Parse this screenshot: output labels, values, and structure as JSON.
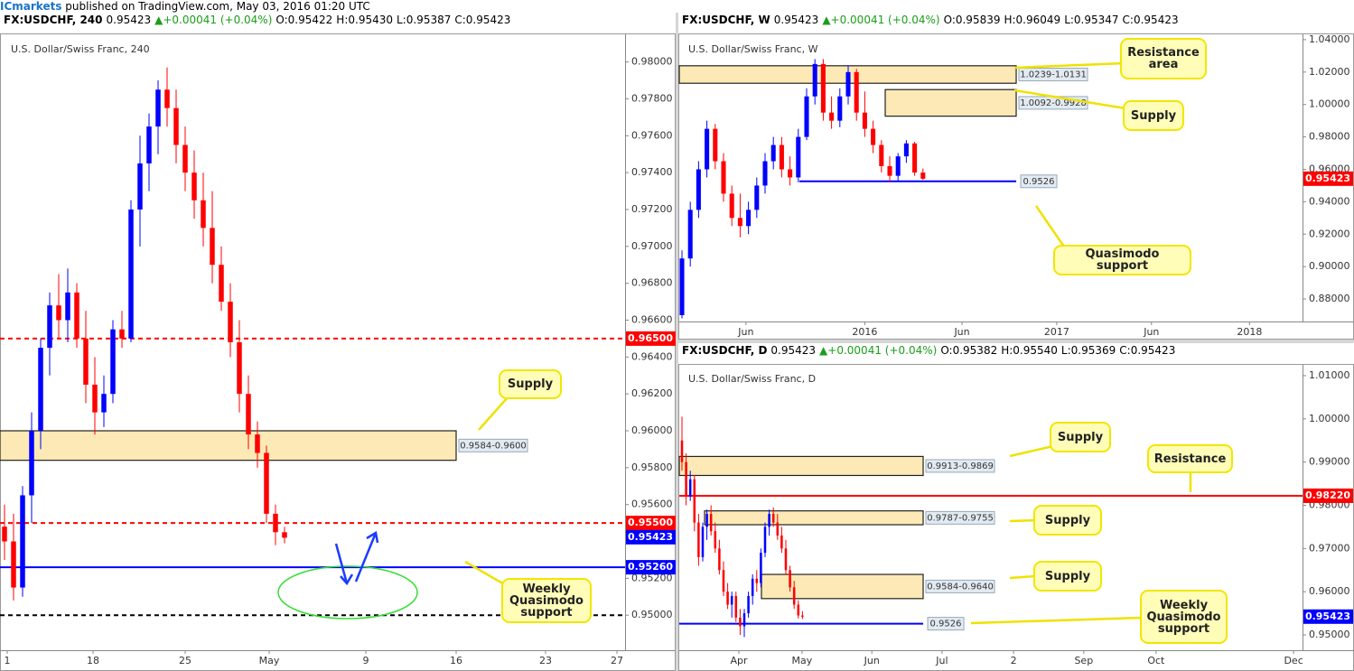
{
  "header": {
    "brand": "ICmarkets",
    "text": "published on TradingView.com, May 03, 2016 01:20 UTC"
  },
  "chart_data": [
    {
      "type": "candlestick",
      "title": "U.S. Dollar/Swiss Franc, 240",
      "info": {
        "symbol": "FX:USDCHF, 240",
        "price": "0.95423",
        "change": "+0.00041 (+0.04%)",
        "open": "O:0.95422",
        "high": "H:0.95430",
        "low": "L:0.95387",
        "close": "C:0.95423"
      },
      "up_color": "#0000ff",
      "down_color": "#ff0000",
      "xlim": [
        -0.5,
        68.7
      ],
      "xticks": [
        {
          "value": 0.3,
          "label": "1"
        },
        {
          "value": 9.8,
          "label": "18"
        },
        {
          "value": 20,
          "label": "25"
        },
        {
          "value": 29.3,
          "label": "May"
        },
        {
          "value": 40,
          "label": "9"
        },
        {
          "value": 50,
          "label": "16"
        },
        {
          "value": 59.9,
          "label": "23"
        },
        {
          "value": 67.8,
          "label": "27"
        }
      ],
      "ylim": [
        0.9481,
        0.9815
      ],
      "yticks": [
        {
          "value": 0.95,
          "label": "0.95000"
        },
        {
          "value": 0.952,
          "label": "0.95200"
        },
        {
          "value": 0.954,
          "label": "0.95400"
        },
        {
          "value": 0.956,
          "label": "0.95600"
        },
        {
          "value": 0.958,
          "label": "0.95800"
        },
        {
          "value": 0.96,
          "label": "0.96000"
        },
        {
          "value": 0.962,
          "label": "0.96200"
        },
        {
          "value": 0.964,
          "label": "0.96400"
        },
        {
          "value": 0.966,
          "label": "0.96600"
        },
        {
          "value": 0.968,
          "label": "0.96800"
        },
        {
          "value": 0.97,
          "label": "0.97000"
        },
        {
          "value": 0.972,
          "label": "0.97200"
        },
        {
          "value": 0.974,
          "label": "0.97400"
        },
        {
          "value": 0.976,
          "label": "0.97600"
        },
        {
          "value": 0.978,
          "label": "0.97800"
        },
        {
          "value": 0.98,
          "label": "0.98000"
        }
      ],
      "x": [
        0,
        1,
        2,
        3,
        4,
        5,
        6,
        7,
        8,
        9,
        10,
        11,
        12,
        13,
        14,
        15,
        16,
        17,
        18,
        19,
        20,
        21,
        22,
        23,
        24,
        25,
        26,
        27,
        28,
        29,
        30,
        31
      ],
      "open": [
        0.9548,
        0.954,
        0.9515,
        0.9565,
        0.96,
        0.9645,
        0.9668,
        0.966,
        0.9675,
        0.965,
        0.9625,
        0.961,
        0.962,
        0.9655,
        0.965,
        0.972,
        0.9745,
        0.9765,
        0.9785,
        0.9775,
        0.9755,
        0.974,
        0.9725,
        0.971,
        0.969,
        0.967,
        0.9648,
        0.962,
        0.9598,
        0.9588,
        0.9555,
        0.9545
      ],
      "high": [
        0.956,
        0.9555,
        0.957,
        0.961,
        0.965,
        0.9675,
        0.9685,
        0.9688,
        0.968,
        0.9665,
        0.964,
        0.963,
        0.966,
        0.9665,
        0.9725,
        0.976,
        0.9772,
        0.979,
        0.9797,
        0.9785,
        0.9765,
        0.9752,
        0.974,
        0.973,
        0.97,
        0.968,
        0.966,
        0.963,
        0.9605,
        0.9592,
        0.956,
        0.9548
      ],
      "low": [
        0.953,
        0.9508,
        0.951,
        0.955,
        0.959,
        0.963,
        0.965,
        0.9648,
        0.9645,
        0.9615,
        0.9598,
        0.9602,
        0.9615,
        0.9645,
        0.9648,
        0.97,
        0.973,
        0.975,
        0.9765,
        0.9745,
        0.973,
        0.9715,
        0.97,
        0.968,
        0.9665,
        0.964,
        0.961,
        0.959,
        0.958,
        0.955,
        0.9538,
        0.9539
      ],
      "close": [
        0.954,
        0.9515,
        0.9565,
        0.96,
        0.9645,
        0.9668,
        0.966,
        0.9675,
        0.965,
        0.9625,
        0.961,
        0.962,
        0.9655,
        0.965,
        0.972,
        0.9745,
        0.9765,
        0.9785,
        0.9775,
        0.9755,
        0.974,
        0.9725,
        0.971,
        0.969,
        0.967,
        0.9648,
        0.962,
        0.9598,
        0.9588,
        0.9555,
        0.9545,
        0.9542
      ],
      "zones": [
        {
          "low": 0.9584,
          "high": 0.96,
          "start": -0.5,
          "end": 50,
          "label": "0.9584-0.9600"
        }
      ],
      "levels": [
        {
          "value": 0.965,
          "label": "0.96500",
          "color": "#ff0000",
          "style": "dashed",
          "tag": "axis",
          "start": -0.5,
          "end": 68.7
        },
        {
          "value": 0.955,
          "label": "0.95500",
          "color": "#ff0000",
          "style": "dashed",
          "tag": "axis",
          "start": -0.5,
          "end": 68.7
        },
        {
          "value": 0.9526,
          "label": "0.95260",
          "color": "#0000ff",
          "style": "solid",
          "tag": "axis",
          "start": -0.5,
          "end": 68.7
        },
        {
          "value": 0.95,
          "color": "#000000",
          "style": "dashed",
          "start": -0.5,
          "end": 68.7
        }
      ],
      "last": {
        "value": 0.95423,
        "label": "0.95423",
        "color": "#0000ff"
      },
      "annotations": [
        "Supply",
        "Weekly Quasimodo support"
      ]
    },
    {
      "type": "candlestick",
      "title": "U.S. Dollar/Swiss Franc, W",
      "info": {
        "symbol": "FX:USDCHF, W",
        "price": "0.95423",
        "change": "+0.00041 (+0.04%)",
        "open": "O:0.95839",
        "high": "H:0.96049",
        "low": "L:0.95347",
        "close": "C:0.95423"
      },
      "up_color": "#0000ff",
      "down_color": "#ff0000",
      "xlim": [
        -0.326,
        74.674
      ],
      "xticks": [
        {
          "value": 7.7,
          "label": "Jun"
        },
        {
          "value": 22,
          "label": "2016"
        },
        {
          "value": 33.7,
          "label": "Jun"
        },
        {
          "value": 45.1,
          "label": "2017"
        },
        {
          "value": 56.5,
          "label": "Jun"
        },
        {
          "value": 68.3,
          "label": "2018"
        }
      ],
      "ylim": [
        0.8661,
        1.0433
      ],
      "yticks": [
        {
          "value": 0.88,
          "label": "0.88000"
        },
        {
          "value": 0.9,
          "label": "0.90000"
        },
        {
          "value": 0.92,
          "label": "0.92000"
        },
        {
          "value": 0.94,
          "label": "0.94000"
        },
        {
          "value": 0.96,
          "label": "0.96000"
        },
        {
          "value": 0.98,
          "label": "0.98000"
        },
        {
          "value": 1,
          "label": "1.00000"
        },
        {
          "value": 1.02,
          "label": "1.02000"
        },
        {
          "value": 1.04,
          "label": "1.04000"
        }
      ],
      "x": [
        0,
        1,
        2,
        3,
        4,
        5,
        6,
        7,
        8,
        9,
        10,
        11,
        12,
        13,
        14,
        15,
        16,
        17,
        18,
        19,
        20,
        21,
        22,
        23,
        24,
        25,
        26,
        27,
        28,
        29
      ],
      "open": [
        0.87,
        0.905,
        0.935,
        0.96,
        0.985,
        0.965,
        0.945,
        0.93,
        0.925,
        0.935,
        0.95,
        0.965,
        0.975,
        0.96,
        0.955,
        0.98,
        1.005,
        1.025,
        0.995,
        0.99,
        1.005,
        1.02,
        0.995,
        0.985,
        0.975,
        0.962,
        0.956,
        0.968,
        0.976,
        0.958
      ],
      "high": [
        0.91,
        0.94,
        0.965,
        0.99,
        0.988,
        0.97,
        0.95,
        0.945,
        0.94,
        0.955,
        0.97,
        0.98,
        0.98,
        0.968,
        0.985,
        1.01,
        1.028,
        1.028,
        1.005,
        1.01,
        1.024,
        1.022,
        1.008,
        0.99,
        0.978,
        0.968,
        0.97,
        0.978,
        0.977,
        0.9605
      ],
      "low": [
        0.868,
        0.9,
        0.93,
        0.955,
        0.96,
        0.94,
        0.925,
        0.918,
        0.92,
        0.93,
        0.945,
        0.96,
        0.955,
        0.95,
        0.952,
        0.978,
        1,
        0.99,
        0.985,
        0.986,
        1,
        0.99,
        0.98,
        0.97,
        0.958,
        0.952,
        0.953,
        0.964,
        0.956,
        0.9535
      ],
      "close": [
        0.905,
        0.935,
        0.96,
        0.985,
        0.965,
        0.945,
        0.93,
        0.925,
        0.935,
        0.95,
        0.965,
        0.975,
        0.96,
        0.955,
        0.98,
        1.005,
        1.025,
        0.995,
        0.99,
        1.005,
        1.02,
        0.995,
        0.985,
        0.975,
        0.962,
        0.956,
        0.968,
        0.976,
        0.958,
        0.9542
      ],
      "zones": [
        {
          "low": 1.0131,
          "high": 1.0239,
          "start": -0.326,
          "end": 40.22,
          "label": "1.0239-1.0131"
        },
        {
          "low": 0.9928,
          "high": 1.0092,
          "start": 24.46,
          "end": 40.22,
          "label": "1.0092-0.9928"
        }
      ],
      "levels": [
        {
          "value": 0.9526,
          "label": "0.9526",
          "color": "#0000ff",
          "style": "solid",
          "tag": "inline",
          "start": 14.13,
          "end": 40.22
        }
      ],
      "last": {
        "value": 0.95423,
        "label": "0.95423",
        "color": "#ff0000"
      },
      "annotations": [
        "Resistance area",
        "Supply",
        "Quasimodo support"
      ]
    },
    {
      "type": "candlestick",
      "title": "U.S. Dollar/Swiss Franc, D",
      "info": {
        "symbol": "FX:USDCHF, D",
        "price": "0.95423",
        "change": "+0.00041 (+0.04%)",
        "open": "O:0.95382",
        "high": "H:0.95540",
        "low": "L:0.95369",
        "close": "C:0.95423"
      },
      "up_color": "#0000ff",
      "down_color": "#ff0000",
      "xlim": [
        -0.65,
        149.35
      ],
      "xticks": [
        {
          "value": 13.7,
          "label": "Apr"
        },
        {
          "value": 28.9,
          "label": "May"
        },
        {
          "value": 45.7,
          "label": "Jun"
        },
        {
          "value": 62.6,
          "label": "Jul"
        },
        {
          "value": 79.8,
          "label": "2"
        },
        {
          "value": 96.7,
          "label": "Sep"
        },
        {
          "value": 114.1,
          "label": "Oct"
        },
        {
          "value": 147.2,
          "label": "Dec"
        }
      ],
      "ylim": [
        0.94645,
        1.0125
      ],
      "yticks": [
        {
          "value": 0.95,
          "label": "0.95000"
        },
        {
          "value": 0.96,
          "label": "0.96000"
        },
        {
          "value": 0.97,
          "label": "0.97000"
        },
        {
          "value": 0.98,
          "label": "0.98000"
        },
        {
          "value": 0.99,
          "label": "0.99000"
        },
        {
          "value": 1,
          "label": "1.00000"
        },
        {
          "value": 1.01,
          "label": "1.01000"
        }
      ],
      "x": [
        0,
        1,
        2,
        3,
        4,
        5,
        6,
        7,
        8,
        9,
        10,
        11,
        12,
        13,
        14,
        15,
        16,
        17,
        18,
        19,
        20,
        21,
        22,
        23,
        24,
        25,
        26,
        27,
        28,
        29
      ],
      "open": [
        0.995,
        0.99,
        0.982,
        0.986,
        0.976,
        0.968,
        0.975,
        0.978,
        0.974,
        0.97,
        0.965,
        0.96,
        0.957,
        0.959,
        0.954,
        0.952,
        0.955,
        0.959,
        0.963,
        0.962,
        0.969,
        0.975,
        0.978,
        0.976,
        0.973,
        0.97,
        0.965,
        0.961,
        0.957,
        0.9545
      ],
      "high": [
        1.0005,
        0.992,
        0.988,
        0.987,
        0.978,
        0.976,
        0.979,
        0.98,
        0.976,
        0.972,
        0.967,
        0.962,
        0.96,
        0.96,
        0.956,
        0.956,
        0.96,
        0.964,
        0.965,
        0.97,
        0.976,
        0.979,
        0.9795,
        0.978,
        0.975,
        0.972,
        0.966,
        0.9625,
        0.958,
        0.9555
      ],
      "low": [
        0.988,
        0.98,
        0.981,
        0.974,
        0.966,
        0.967,
        0.972,
        0.973,
        0.969,
        0.964,
        0.959,
        0.956,
        0.954,
        0.953,
        0.95,
        0.9495,
        0.954,
        0.957,
        0.96,
        0.961,
        0.968,
        0.973,
        0.975,
        0.972,
        0.969,
        0.964,
        0.96,
        0.956,
        0.9538,
        0.9537
      ],
      "close": [
        0.99,
        0.982,
        0.986,
        0.976,
        0.968,
        0.975,
        0.978,
        0.974,
        0.97,
        0.965,
        0.96,
        0.957,
        0.959,
        0.954,
        0.952,
        0.955,
        0.959,
        0.963,
        0.962,
        0.969,
        0.975,
        0.978,
        0.976,
        0.973,
        0.97,
        0.965,
        0.961,
        0.957,
        0.9545,
        0.9542
      ],
      "zones": [
        {
          "low": 0.9869,
          "high": 0.9913,
          "start": -0.65,
          "end": 58.05,
          "label": "0.9913-0.9869"
        },
        {
          "low": 0.9755,
          "high": 0.9787,
          "start": 5.44,
          "end": 58.05,
          "label": "0.9787-0.9755"
        },
        {
          "low": 0.9584,
          "high": 0.964,
          "start": 19.13,
          "end": 58.05,
          "label": "0.9584-0.9640"
        }
      ],
      "levels": [
        {
          "value": 0.9822,
          "label": "0.98220",
          "color": "#ff0000",
          "style": "solid",
          "tag": "axis",
          "start": -0.65,
          "end": 149.35
        },
        {
          "value": 0.9526,
          "label": "0.9526",
          "color": "#0000ff",
          "style": "solid",
          "tag": "inline",
          "start": -0.65,
          "end": 58.05
        }
      ],
      "last": {
        "value": 0.95423,
        "label": "0.95423",
        "color": "#0000ff"
      },
      "annotations": [
        "Supply",
        "Resistance",
        "Supply",
        "Supply",
        "Weekly Quasimodo support"
      ]
    }
  ]
}
